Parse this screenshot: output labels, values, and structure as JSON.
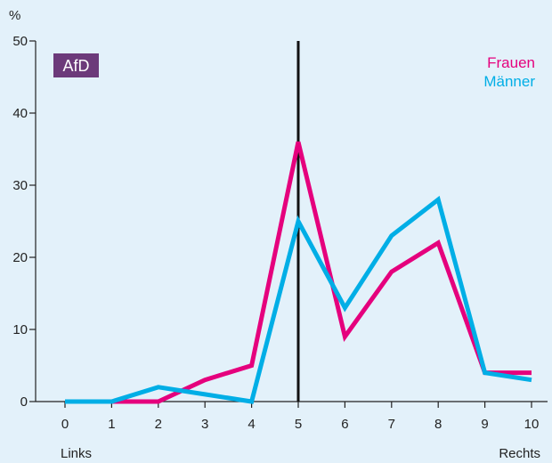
{
  "chart_data": {
    "type": "line",
    "badge": "AfD",
    "ylabel": "%",
    "x_left_label": "Links",
    "x_right_label": "Rechts",
    "x": [
      0,
      1,
      2,
      3,
      4,
      5,
      6,
      7,
      8,
      9,
      10
    ],
    "xlim": [
      0,
      10
    ],
    "ylim": [
      0,
      50
    ],
    "yticks": [
      0,
      10,
      20,
      30,
      40,
      50
    ],
    "reference_line_x": 5,
    "series": [
      {
        "name": "Frauen",
        "color": "#e5007d",
        "values": [
          0,
          0,
          0,
          3,
          5,
          36,
          9,
          18,
          22,
          4,
          4
        ]
      },
      {
        "name": "Männer",
        "color": "#00aee6",
        "values": [
          0,
          0,
          2,
          1,
          0,
          25,
          13,
          23,
          28,
          4,
          3
        ]
      }
    ],
    "legend_position": "top-right",
    "grid": false,
    "colors": {
      "background": "#e3f1fa",
      "badge": "#6c3a7a",
      "axis": "#222222",
      "reference_line": "#111111"
    }
  }
}
